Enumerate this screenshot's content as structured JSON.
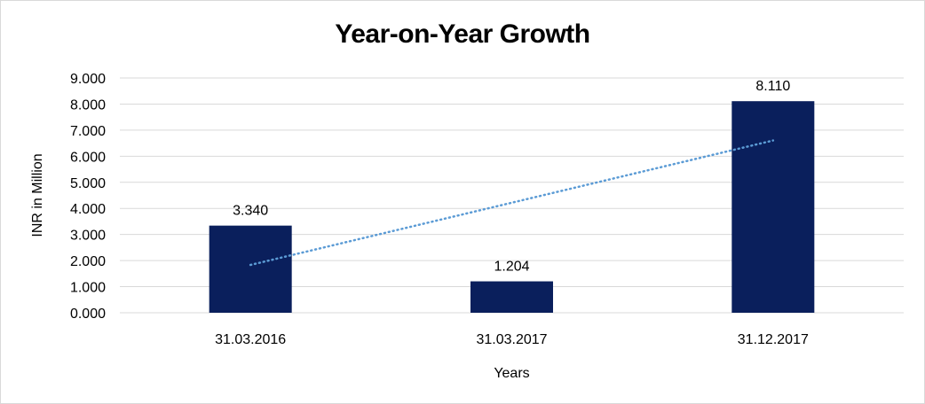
{
  "chart_data": {
    "type": "bar",
    "title": "Year-on-Year Growth",
    "xlabel": "Years",
    "ylabel": "INR in Million",
    "categories": [
      "31.03.2016",
      "31.03.2017",
      "31.12.2017"
    ],
    "values": [
      3.34,
      1.204,
      8.11
    ],
    "data_labels": [
      "3.340",
      "1.204",
      "8.110"
    ],
    "ylim": [
      0,
      9
    ],
    "yticks": [
      0,
      1,
      2,
      3,
      4,
      5,
      6,
      7,
      8,
      9
    ],
    "ytick_labels": [
      "0.000",
      "1.000",
      "2.000",
      "3.000",
      "4.000",
      "5.000",
      "6.000",
      "7.000",
      "8.000",
      "9.000"
    ],
    "trendline": {
      "type": "linear",
      "style": "dotted"
    },
    "grid": true,
    "legend": "none",
    "colors": {
      "bar": "#0a1f5c",
      "trendline": "#5b9bd5",
      "grid": "#d9d9d9"
    }
  }
}
